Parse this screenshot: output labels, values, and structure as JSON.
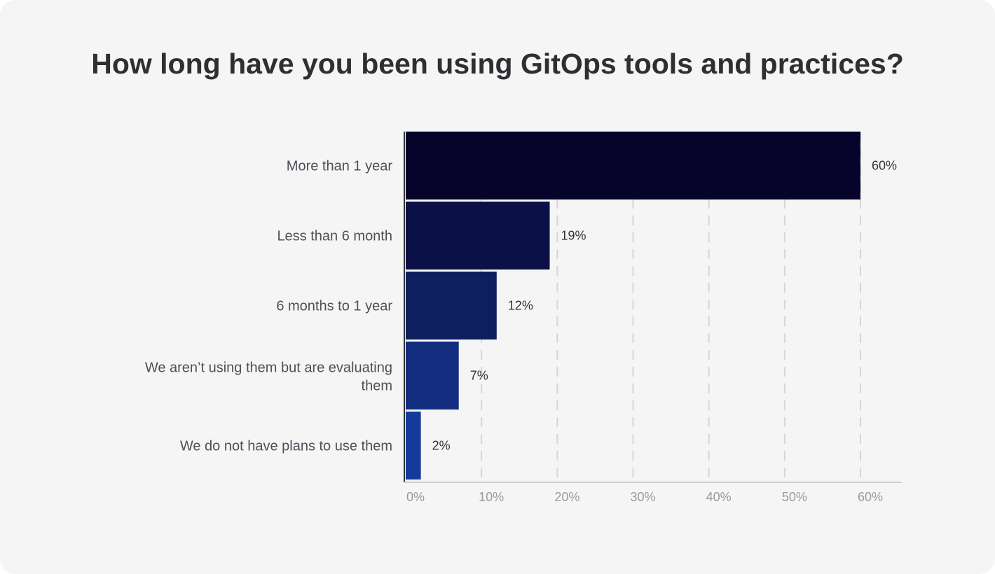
{
  "chart_data": {
    "type": "bar",
    "orientation": "horizontal",
    "title": "How long have you been using GitOps tools and practices?",
    "categories": [
      "More than 1 year",
      "Less than 6 month",
      "6 months to 1 year",
      "We aren’t using them but are evaluating them",
      "We do not have plans to use them"
    ],
    "values": [
      60,
      19,
      12,
      7,
      2
    ],
    "data_labels": [
      "60%",
      "19%",
      "12%",
      "7%",
      "2%"
    ],
    "colors": [
      "#07042c",
      "#0b1046",
      "#0d1f5e",
      "#122d7d",
      "#143a9a"
    ],
    "xlim": [
      0,
      65
    ],
    "xticks": [
      0,
      10,
      20,
      30,
      40,
      50,
      60
    ],
    "xtick_labels": [
      "0%",
      "10%",
      "20%",
      "30%",
      "40%",
      "50%",
      "60%"
    ],
    "grid": "vertical dashed",
    "xlabel": "",
    "ylabel": ""
  }
}
